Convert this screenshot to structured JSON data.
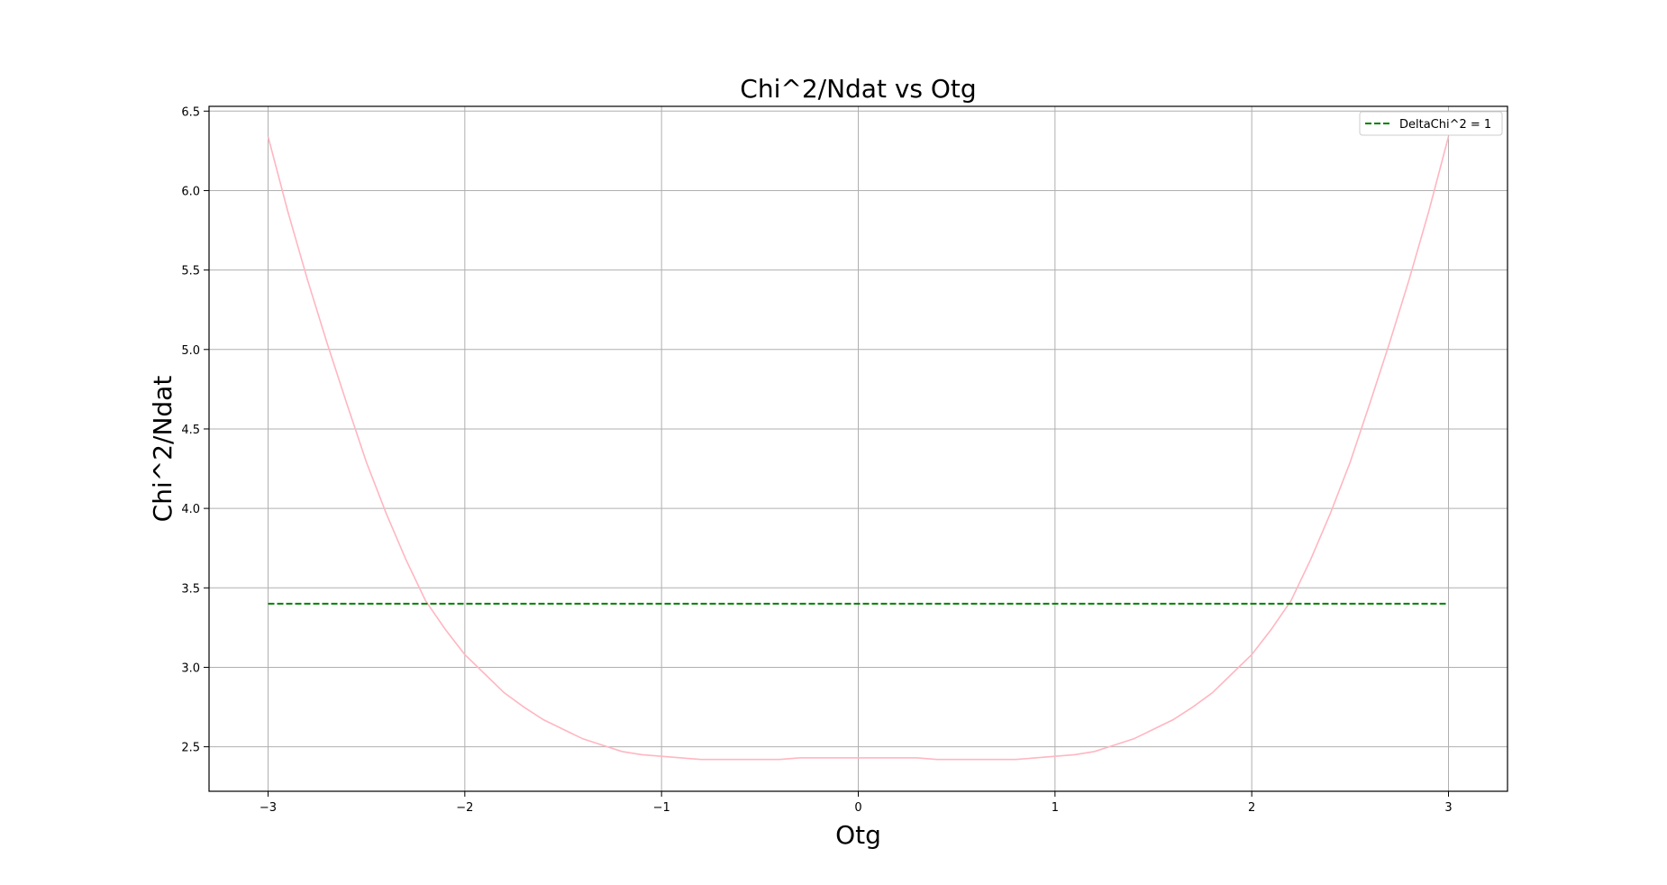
{
  "chart_data": {
    "type": "line",
    "title": "Chi^2/Ndat vs Otg",
    "xlabel": "Otg",
    "ylabel": "Chi^2/Ndat",
    "xlim": [
      -3.3,
      3.3
    ],
    "ylim": [
      2.22,
      6.53
    ],
    "xticks": [
      -3,
      -2,
      -1,
      0,
      1,
      2,
      3
    ],
    "xtick_labels": [
      "−3",
      "−2",
      "−1",
      "0",
      "1",
      "2",
      "3"
    ],
    "yticks": [
      2.5,
      3.0,
      3.5,
      4.0,
      4.5,
      5.0,
      5.5,
      6.0,
      6.5
    ],
    "ytick_labels": [
      "2.5",
      "3.0",
      "3.5",
      "4.0",
      "4.5",
      "5.0",
      "5.5",
      "6.0",
      "6.5"
    ],
    "grid": true,
    "legend_placement": "top-right",
    "series": [
      {
        "style": "solid",
        "color": "#ffb6c1",
        "x": [
          -3.0,
          -2.9,
          -2.8,
          -2.7,
          -2.6,
          -2.5,
          -2.4,
          -2.3,
          -2.2,
          -2.1,
          -2.0,
          -1.9,
          -1.8,
          -1.7,
          -1.6,
          -1.5,
          -1.4,
          -1.3,
          -1.2,
          -1.1,
          -1.0,
          -0.9,
          -0.8,
          -0.7,
          -0.6,
          -0.5,
          -0.4,
          -0.3,
          -0.2,
          -0.1,
          0.0,
          0.1,
          0.2,
          0.3,
          0.4,
          0.5,
          0.6,
          0.7,
          0.8,
          0.9,
          1.0,
          1.1,
          1.2,
          1.3,
          1.4,
          1.5,
          1.6,
          1.7,
          1.8,
          1.9,
          2.0,
          2.1,
          2.2,
          2.3,
          2.4,
          2.5,
          2.6,
          2.7,
          2.8,
          2.9,
          3.0
        ],
        "y": [
          6.34,
          5.87,
          5.44,
          5.04,
          4.66,
          4.29,
          3.97,
          3.68,
          3.42,
          3.24,
          3.08,
          2.96,
          2.84,
          2.75,
          2.67,
          2.61,
          2.55,
          2.51,
          2.47,
          2.45,
          2.44,
          2.43,
          2.42,
          2.42,
          2.42,
          2.42,
          2.42,
          2.43,
          2.43,
          2.43,
          2.43,
          2.43,
          2.43,
          2.43,
          2.42,
          2.42,
          2.42,
          2.42,
          2.42,
          2.43,
          2.44,
          2.45,
          2.47,
          2.51,
          2.55,
          2.61,
          2.67,
          2.75,
          2.84,
          2.96,
          3.08,
          3.24,
          3.42,
          3.68,
          3.97,
          4.29,
          4.66,
          5.04,
          5.44,
          5.87,
          6.34
        ]
      },
      {
        "name": "DeltaChi^2 = 1",
        "style": "dashed",
        "color": "#008000",
        "x": [
          -3.0,
          3.0
        ],
        "y": [
          3.4,
          3.4
        ]
      }
    ]
  }
}
